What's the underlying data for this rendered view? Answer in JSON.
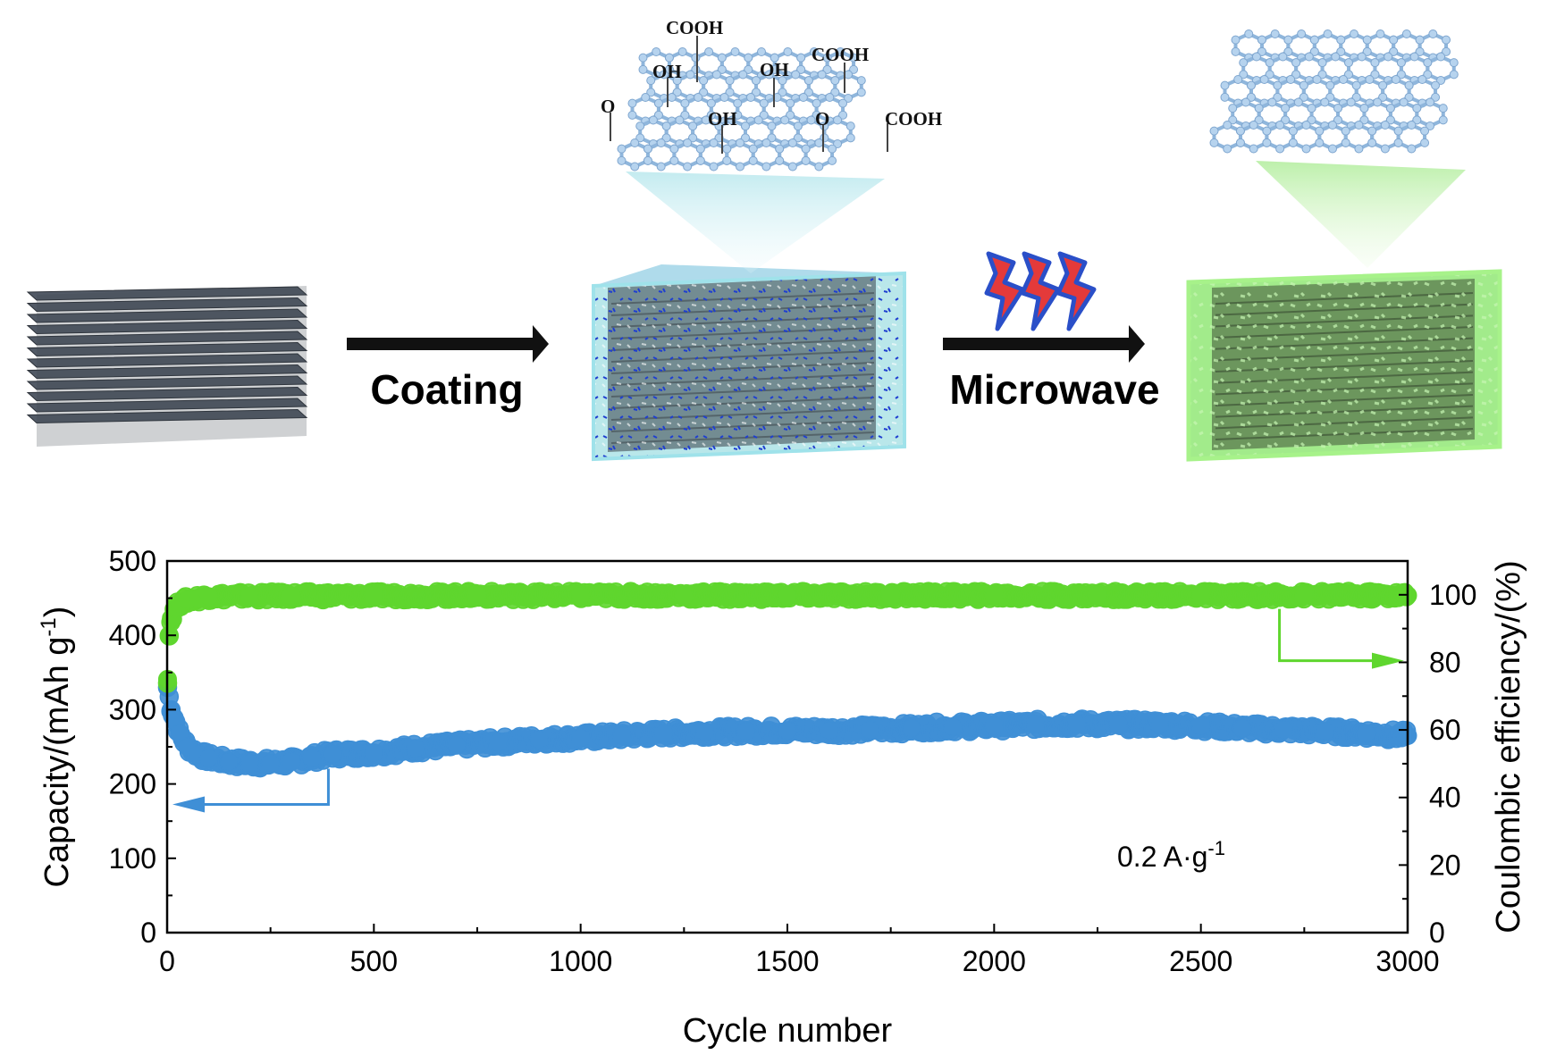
{
  "schematic": {
    "step1_label": "Coating",
    "step2_label": "Microwave",
    "functional_groups": [
      "COOH",
      "OH",
      "OH",
      "COOH",
      "O",
      "OH",
      "O",
      "COOH"
    ],
    "colors": {
      "graphite": "#4a5260",
      "coating_go": "#7fd3d8",
      "coating_go_dots": "#1f3fd0",
      "reduced_coating": "#7be35a",
      "graphene": "#9fc4e6",
      "arrow": "#111111",
      "bolt_fill": "#e43a3a",
      "bolt_edge": "#2a4fc8"
    },
    "icons": [
      "graphite-stack-icon",
      "lightning-bolt-icon",
      "graphene-sheet-icon"
    ]
  },
  "chart_data": {
    "type": "scatter",
    "title": "",
    "xlabel": "Cycle number",
    "ylabel_left": "Capacity/(mAh g",
    "ylabel_left_sup": "-1",
    "ylabel_left_close": ")",
    "ylabel_right": "Coulombic efficiency/(%)",
    "xlim": [
      0,
      3000
    ],
    "ylim_left": [
      0,
      500
    ],
    "ylim_right": [
      0,
      110
    ],
    "x_ticks": [
      0,
      500,
      1000,
      1500,
      2000,
      2500,
      3000
    ],
    "y_left_ticks": [
      0,
      100,
      200,
      300,
      400,
      500
    ],
    "y_right_ticks": [
      0,
      20,
      40,
      60,
      80,
      100
    ],
    "annotation": "0.2 A·g",
    "annotation_sup": "-1",
    "grid": false,
    "series": [
      {
        "axis": "left",
        "color": "#3f8fd6",
        "x": [
          1,
          10,
          20,
          30,
          50,
          75,
          100,
          150,
          200,
          250,
          300,
          350,
          400,
          500,
          600,
          700,
          800,
          900,
          1000,
          1100,
          1200,
          1300,
          1400,
          1500,
          1600,
          1700,
          1800,
          1900,
          2000,
          2100,
          2200,
          2300,
          2400,
          2500,
          2600,
          2700,
          2800,
          2900,
          3000
        ],
        "values": [
          330,
          300,
          285,
          268,
          250,
          240,
          235,
          230,
          228,
          228,
          230,
          235,
          240,
          242,
          248,
          252,
          256,
          260,
          262,
          265,
          268,
          270,
          271,
          272,
          272,
          273,
          275,
          277,
          278,
          280,
          281,
          280,
          280,
          278,
          275,
          273,
          271,
          268,
          265
        ]
      },
      {
        "axis": "right",
        "color": "#5fd62e",
        "x": [
          1,
          5,
          10,
          20,
          30,
          50,
          75,
          100,
          200,
          300,
          500,
          750,
          1000,
          1250,
          1500,
          1750,
          2000,
          2250,
          2500,
          2750,
          3000
        ],
        "values": [
          75,
          88,
          93,
          96,
          97.5,
          98.5,
          99,
          99.5,
          99.6,
          99.7,
          99.7,
          99.8,
          99.8,
          99.8,
          99.8,
          99.8,
          99.8,
          99.8,
          99.8,
          99.8,
          99.8
        ]
      }
    ],
    "axis_indicators": [
      {
        "series_axis": "left",
        "from_x": 390,
        "from_value": 235,
        "to_axis": "left"
      },
      {
        "series_axis": "right",
        "from_x": 2690,
        "from_value": 99,
        "to_axis": "right"
      }
    ]
  }
}
